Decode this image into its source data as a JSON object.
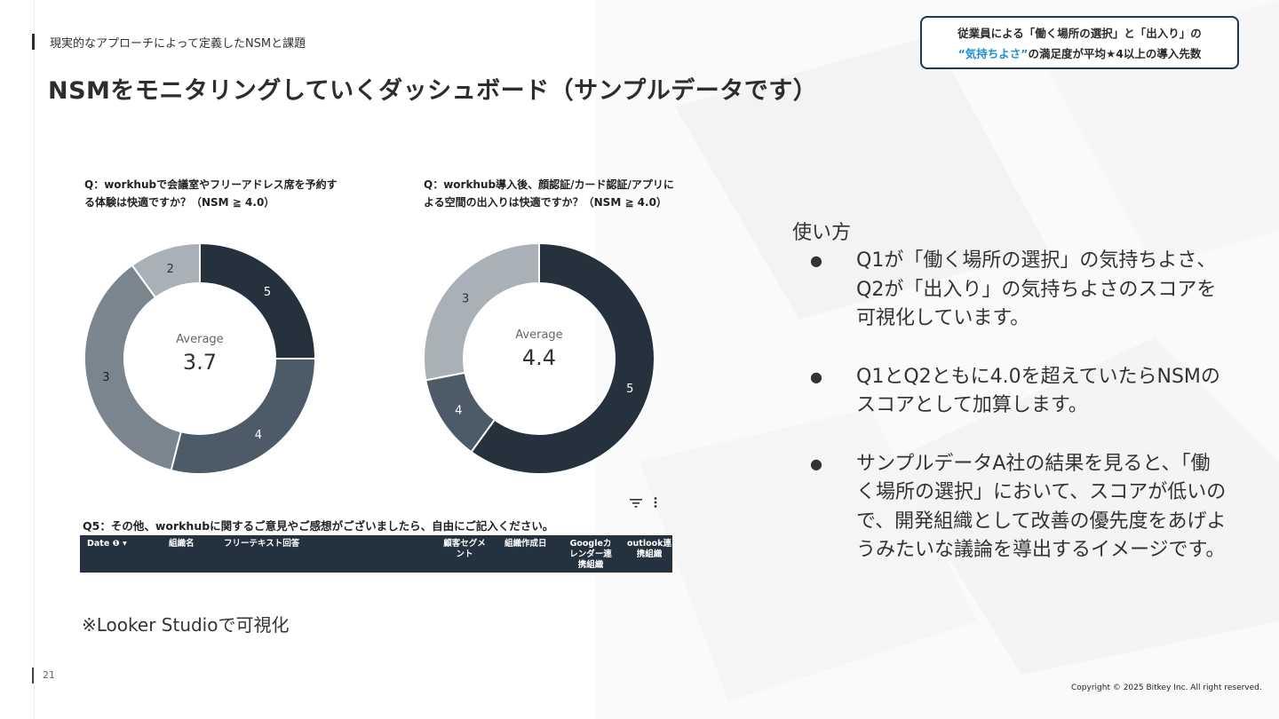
{
  "header": {
    "section_label": "現実的なアプローチによって定義したNSMと課題",
    "title": "NSMをモニタリングしていくダッシュボード（サンプルデータです）"
  },
  "callout": {
    "line1": "従業員による「働く場所の選択」と「出入り」の",
    "line2_accent": "“気持ちよさ”",
    "line2_rest": "の満足度が平均★4以上の導入先数",
    "accent_color": "#1f8fd0",
    "border_color": "#24364a"
  },
  "dashboard": {
    "q1": {
      "title": "Q：workhubで会議室やフリーアドレス席を予約する体験は快適ですか？（NSM ≧ 4.0）",
      "center_label": "Average",
      "center_value": "3.7"
    },
    "q2": {
      "title": "Q：workhub導入後、顔認証/カード認証/アプリによる空間の出入りは快適ですか？（NSM ≧ 4.0）",
      "center_label": "Average",
      "center_value": "4.4"
    },
    "q5_title": "Q5：その他、workhubに関するご意見やご感想がございましたら、自由にご記入ください。",
    "table_headers": [
      "Date ❶ ▾",
      "組織名",
      "フリーテキスト回答",
      "顧客セグメント",
      "組織作成日",
      "Googleカレンダー連携組織",
      "outlook連携組織"
    ],
    "icons": [
      "filter-icon",
      "more-vert-icon"
    ]
  },
  "chart_data": [
    {
      "type": "pie",
      "title": "Q：workhubで会議室やフリーアドレス席を予約する体験は快適ですか？（NSM ≧ 4.0）",
      "labels": [
        "5",
        "4",
        "3",
        "2"
      ],
      "values": [
        0.25,
        0.29,
        0.36,
        0.1
      ],
      "colors": [
        "#25313d",
        "#4c5b67",
        "#7a858f",
        "#a9b0b7"
      ],
      "center_text": "Average 3.7"
    },
    {
      "type": "pie",
      "title": "Q：workhub導入後、顔認証/カード認証/アプリによる空間の出入りは快適ですか？（NSM ≧ 4.0）",
      "labels": [
        "5",
        "4",
        "3"
      ],
      "values": [
        0.6,
        0.12,
        0.28
      ],
      "colors": [
        "#25313d",
        "#4c5b67",
        "#a9b0b7"
      ],
      "center_text": "Average 4.4"
    }
  ],
  "footnote": "※Looker Studioで可視化",
  "usage": {
    "heading": "使い方",
    "items": [
      "Q1が「働く場所の選択」の気持ちよさ、Q2が「出入り」の気持ちよさのスコアを可視化しています。",
      "Q1とQ2ともに4.0を超えていたらNSMのスコアとして加算します。",
      "サンプルデータA社の結果を見ると、「働く場所の選択」において、スコアが低いので、開発組織として改善の優先度をあげようみたいな議論を導出するイメージです。"
    ],
    "bullet": "●"
  },
  "footer": {
    "page_number": "21",
    "copyright": "Copyright © 2025 Bitkey Inc. All right reserved."
  }
}
